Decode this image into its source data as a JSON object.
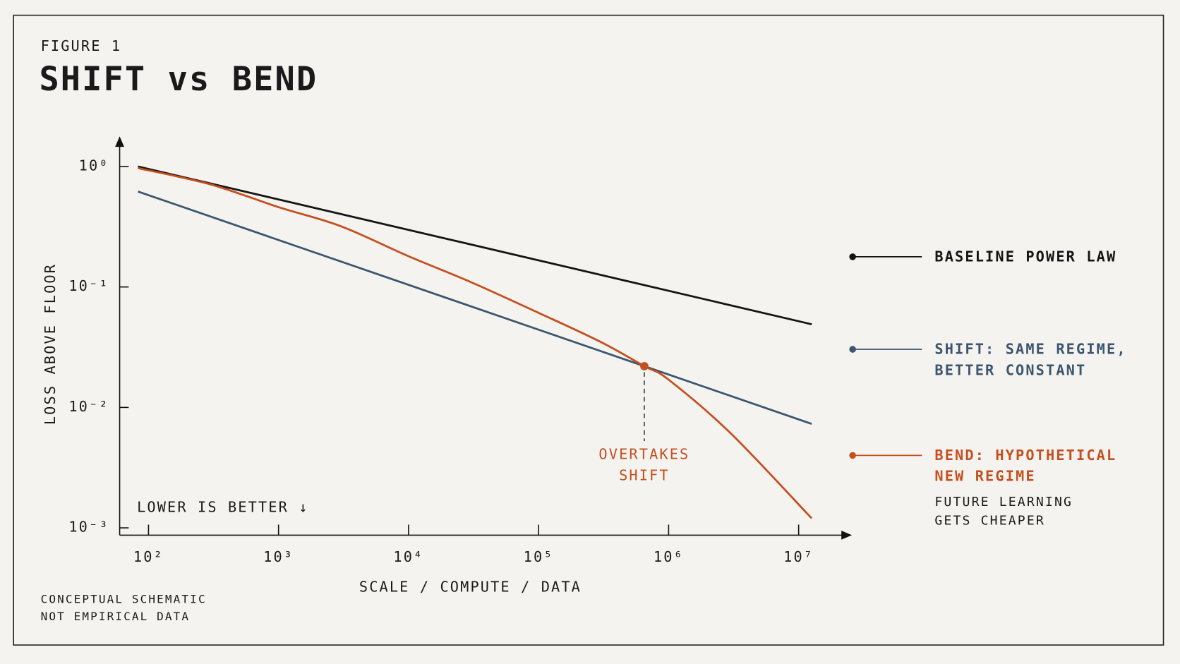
{
  "chart_data": {
    "type": "line",
    "figure_label": "FIGURE 1",
    "title": "SHIFT vs BEND",
    "xlabel": "SCALE / COMPUTE / DATA",
    "ylabel": "LOSS ABOVE FLOOR",
    "log_x": true,
    "log_y": true,
    "xlim": [
      60,
      25000000
    ],
    "ylim": [
      0.00087,
      1.68
    ],
    "xticks": [
      {
        "value": 100,
        "label": "10²"
      },
      {
        "value": 1000,
        "label": "10³"
      },
      {
        "value": 10000,
        "label": "10⁴"
      },
      {
        "value": 100000,
        "label": "10⁵"
      },
      {
        "value": 1000000,
        "label": "10⁶"
      },
      {
        "value": 10000000,
        "label": "10⁷"
      }
    ],
    "yticks": [
      {
        "value": 1,
        "label": "10⁰"
      },
      {
        "value": 0.1,
        "label": "10⁻¹"
      },
      {
        "value": 0.01,
        "label": "10⁻²"
      },
      {
        "value": 0.001,
        "label": "10⁻³"
      }
    ],
    "series": [
      {
        "name": "BASELINE POWER LAW",
        "color": "#141414",
        "x": [
          83,
          12600000
        ],
        "values": [
          1.0,
          0.049
        ]
      },
      {
        "name": "SHIFT: SAME REGIME, BETTER CONSTANT",
        "color": "#3b566e",
        "x": [
          83,
          12600000
        ],
        "values": [
          0.62,
          0.0073
        ]
      },
      {
        "name": "BEND: HYPOTHETICAL NEW REGIME",
        "color": "#c4501f",
        "note": "FUTURE LEARNING GETS CHEAPER",
        "x": [
          83,
          300,
          1000,
          3000,
          10000,
          30000,
          100000,
          300000,
          650000,
          1000000,
          3000000,
          12600000
        ],
        "values": [
          0.97,
          0.71,
          0.46,
          0.32,
          0.18,
          0.11,
          0.061,
          0.035,
          0.022,
          0.017,
          0.0061,
          0.0012
        ]
      }
    ],
    "annotation": {
      "text": "OVERTAKES SHIFT",
      "x": 650000,
      "y": 0.022
    },
    "inset_text": "LOWER IS BETTER ↓",
    "footnote": [
      "CONCEPTUAL SCHEMATIC",
      "NOT EMPIRICAL DATA"
    ]
  }
}
